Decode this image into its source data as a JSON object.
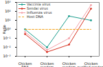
{
  "chart_data": {
    "type": "line",
    "categories": [
      "Chicken RNA",
      "Chicken random",
      "Chicken random",
      "Chicken purified random"
    ],
    "y_label": "Ratio",
    "log": "y",
    "ylim": [
      0.001,
      1000
    ],
    "yticks": [
      {
        "value": 0.001,
        "label": "10⁻³"
      },
      {
        "value": 0.01,
        "label": "10⁻²"
      },
      {
        "value": 0.1,
        "label": "10⁻¹"
      },
      {
        "value": 1,
        "label": "10⁰"
      },
      {
        "value": 10,
        "label": "10¹"
      },
      {
        "value": 100,
        "label": "10²"
      },
      {
        "value": 1000,
        "label": "10³"
      }
    ],
    "legend": "upper left",
    "series": [
      {
        "name": "Vaccinia virus",
        "color": "#1a9c8c",
        "marker": "circle",
        "line_style": "solid",
        "values": [
          1,
          0.01,
          30,
          10
        ]
      },
      {
        "name": "Sendai virus",
        "color": "#d7301f",
        "marker": "circle",
        "line_style": "solid",
        "values": [
          0.3,
          0.003,
          0.02,
          200
        ]
      },
      {
        "name": "Influenza virus",
        "color": "#f4a0a8",
        "marker": "circle",
        "line_style": "solid",
        "values": [
          0.5,
          0.005,
          0.1,
          500
        ]
      },
      {
        "name": "Host DNA",
        "color": "#f5a623",
        "marker": "none",
        "line_style": "dashed",
        "values": [
          1,
          1,
          1,
          1
        ]
      }
    ]
  }
}
